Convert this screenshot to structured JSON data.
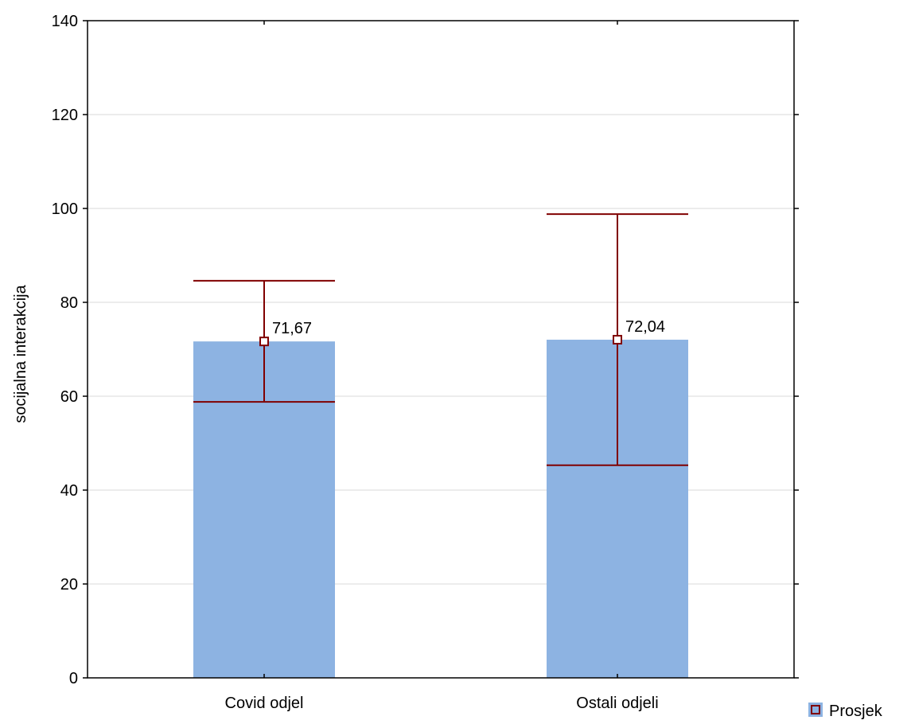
{
  "chart_data": {
    "type": "bar",
    "ylabel": "socijalna interakcija",
    "xlabel": "",
    "title": "",
    "ylim": [
      0,
      140
    ],
    "yticks": [
      0,
      20,
      40,
      60,
      80,
      100,
      120,
      140
    ],
    "grid": true,
    "categories": [
      "Covid odjel",
      "Ostali odjeli"
    ],
    "series": [
      {
        "name": "Prosjek",
        "values": [
          71.67,
          72.04
        ],
        "error_upper": [
          84.6,
          98.8
        ],
        "error_lower": [
          58.8,
          45.3
        ],
        "data_labels": [
          "71,67",
          "72,04"
        ]
      }
    ],
    "legend": {
      "position": "bottom-right",
      "entries": [
        "Prosjek"
      ]
    },
    "colors": {
      "bar": "#8db3e2",
      "error": "#800000",
      "grid": "#d9d9d9",
      "axis": "#000000"
    }
  }
}
